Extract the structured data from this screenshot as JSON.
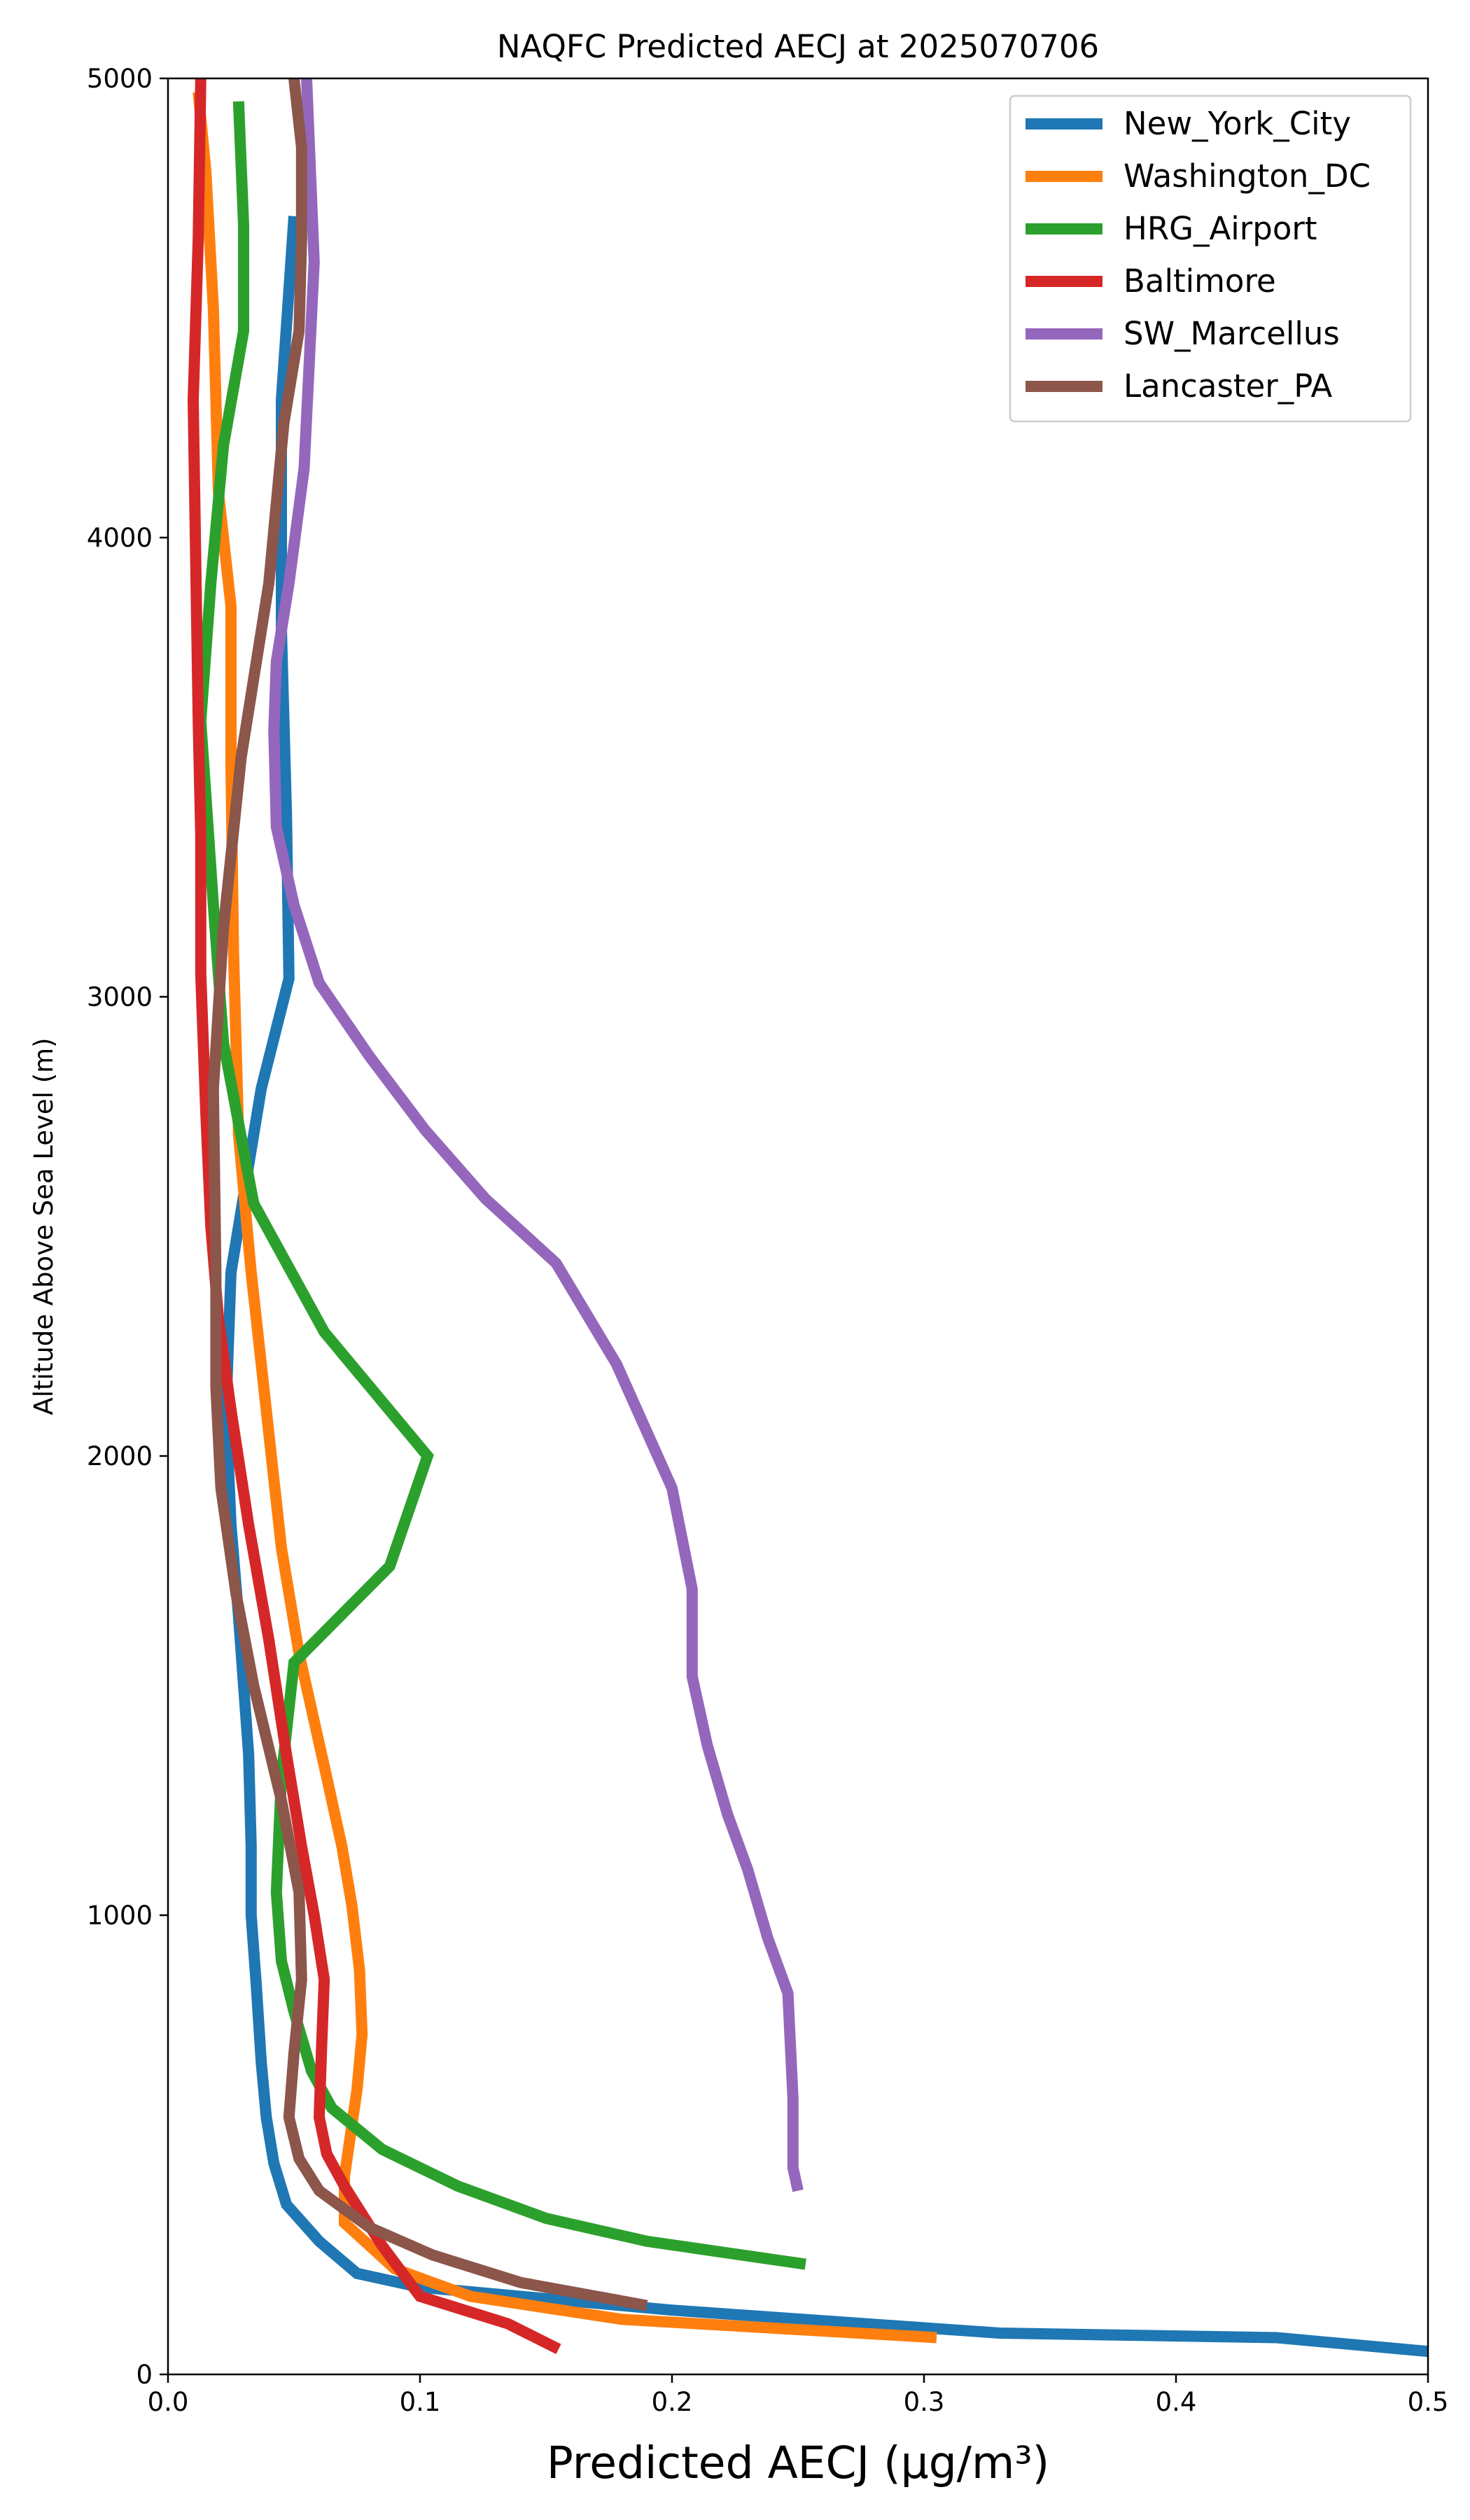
{
  "chart_data": {
    "type": "line",
    "title": "NAQFC Predicted AECJ at 2025070706",
    "xlabel": "Predicted AECJ (μg/m³)",
    "ylabel": "Altitude Above Sea Level (m)",
    "xlim": [
      0,
      0.5
    ],
    "ylim": [
      0,
      5000
    ],
    "xticks": [
      "0.0",
      "0.1",
      "0.2",
      "0.3",
      "0.4",
      "0.5"
    ],
    "yticks": [
      "0",
      "1000",
      "2000",
      "3000",
      "4000",
      "5000"
    ],
    "grid": false,
    "legend_position": "top-right",
    "series": [
      {
        "name": "New_York_City",
        "color": "#1f77b4",
        "points": [
          [
            0.5,
            50
          ],
          [
            0.44,
            80
          ],
          [
            0.33,
            90
          ],
          [
            0.2,
            140
          ],
          [
            0.1,
            190
          ],
          [
            0.075,
            220
          ],
          [
            0.06,
            290
          ],
          [
            0.047,
            370
          ],
          [
            0.042,
            460
          ],
          [
            0.039,
            560
          ],
          [
            0.037,
            680
          ],
          [
            0.035,
            850
          ],
          [
            0.033,
            1000
          ],
          [
            0.033,
            1150
          ],
          [
            0.032,
            1350
          ],
          [
            0.028,
            1650
          ],
          [
            0.025,
            1850
          ],
          [
            0.023,
            2100
          ],
          [
            0.025,
            2400
          ],
          [
            0.037,
            2800
          ],
          [
            0.048,
            3040
          ],
          [
            0.047,
            3400
          ],
          [
            0.045,
            3800
          ],
          [
            0.045,
            4300
          ],
          [
            0.05,
            4700
          ]
        ]
      },
      {
        "name": "Washington_DC",
        "color": "#ff7f0e",
        "points": [
          [
            0.305,
            80
          ],
          [
            0.18,
            120
          ],
          [
            0.12,
            170
          ],
          [
            0.09,
            230
          ],
          [
            0.07,
            330
          ],
          [
            0.07,
            430
          ],
          [
            0.075,
            620
          ],
          [
            0.077,
            740
          ],
          [
            0.076,
            880
          ],
          [
            0.073,
            1020
          ],
          [
            0.069,
            1150
          ],
          [
            0.063,
            1300
          ],
          [
            0.052,
            1570
          ],
          [
            0.045,
            1800
          ],
          [
            0.038,
            2150
          ],
          [
            0.033,
            2400
          ],
          [
            0.028,
            2700
          ],
          [
            0.026,
            3100
          ],
          [
            0.025,
            3500
          ],
          [
            0.025,
            3850
          ],
          [
            0.02,
            4100
          ],
          [
            0.018,
            4500
          ],
          [
            0.015,
            4800
          ],
          [
            0.012,
            4970
          ]
        ]
      },
      {
        "name": "HRG_Airport",
        "color": "#2ca02c",
        "points": [
          [
            0.253,
            240
          ],
          [
            0.19,
            290
          ],
          [
            0.15,
            340
          ],
          [
            0.115,
            410
          ],
          [
            0.085,
            490
          ],
          [
            0.065,
            580
          ],
          [
            0.057,
            660
          ],
          [
            0.05,
            790
          ],
          [
            0.045,
            900
          ],
          [
            0.043,
            1050
          ],
          [
            0.045,
            1300
          ],
          [
            0.05,
            1550
          ],
          [
            0.088,
            1760
          ],
          [
            0.103,
            2000
          ],
          [
            0.062,
            2270
          ],
          [
            0.034,
            2550
          ],
          [
            0.022,
            2900
          ],
          [
            0.018,
            3200
          ],
          [
            0.013,
            3600
          ],
          [
            0.017,
            3900
          ],
          [
            0.022,
            4200
          ],
          [
            0.03,
            4450
          ],
          [
            0.03,
            4680
          ],
          [
            0.028,
            4950
          ]
        ]
      },
      {
        "name": "Baltimore",
        "color": "#d62728",
        "points": [
          [
            0.155,
            55
          ],
          [
            0.135,
            110
          ],
          [
            0.1,
            170
          ],
          [
            0.085,
            280
          ],
          [
            0.07,
            410
          ],
          [
            0.063,
            480
          ],
          [
            0.06,
            560
          ],
          [
            0.061,
            720
          ],
          [
            0.062,
            860
          ],
          [
            0.058,
            1000
          ],
          [
            0.053,
            1150
          ],
          [
            0.047,
            1350
          ],
          [
            0.04,
            1600
          ],
          [
            0.032,
            1850
          ],
          [
            0.025,
            2100
          ],
          [
            0.02,
            2300
          ],
          [
            0.017,
            2500
          ],
          [
            0.015,
            2750
          ],
          [
            0.013,
            3050
          ],
          [
            0.013,
            3350
          ],
          [
            0.012,
            3600
          ],
          [
            0.01,
            4300
          ],
          [
            0.012,
            4650
          ],
          [
            0.013,
            5000
          ]
        ]
      },
      {
        "name": "SW_Marcellus",
        "color": "#9467bd",
        "points": [
          [
            0.25,
            400
          ],
          [
            0.248,
            450
          ],
          [
            0.248,
            600
          ],
          [
            0.246,
            830
          ],
          [
            0.238,
            950
          ],
          [
            0.23,
            1100
          ],
          [
            0.222,
            1220
          ],
          [
            0.214,
            1370
          ],
          [
            0.208,
            1520
          ],
          [
            0.208,
            1710
          ],
          [
            0.2,
            1930
          ],
          [
            0.178,
            2200
          ],
          [
            0.154,
            2420
          ],
          [
            0.126,
            2560
          ],
          [
            0.102,
            2710
          ],
          [
            0.08,
            2870
          ],
          [
            0.06,
            3030
          ],
          [
            0.05,
            3200
          ],
          [
            0.043,
            3370
          ],
          [
            0.042,
            3580
          ],
          [
            0.043,
            3730
          ],
          [
            0.048,
            3900
          ],
          [
            0.054,
            4150
          ],
          [
            0.058,
            4600
          ],
          [
            0.055,
            5000
          ]
        ]
      },
      {
        "name": "Lancaster_PA",
        "color": "#8c564b",
        "points": [
          [
            0.19,
            150
          ],
          [
            0.14,
            200
          ],
          [
            0.105,
            260
          ],
          [
            0.08,
            320
          ],
          [
            0.06,
            400
          ],
          [
            0.052,
            470
          ],
          [
            0.048,
            560
          ],
          [
            0.05,
            700
          ],
          [
            0.053,
            860
          ],
          [
            0.052,
            1050
          ],
          [
            0.045,
            1250
          ],
          [
            0.034,
            1500
          ],
          [
            0.027,
            1700
          ],
          [
            0.021,
            1930
          ],
          [
            0.019,
            2150
          ],
          [
            0.019,
            2400
          ],
          [
            0.018,
            2800
          ],
          [
            0.022,
            3150
          ],
          [
            0.029,
            3520
          ],
          [
            0.04,
            3900
          ],
          [
            0.046,
            4250
          ],
          [
            0.052,
            4450
          ],
          [
            0.053,
            4650
          ],
          [
            0.053,
            4850
          ],
          [
            0.05,
            5000
          ]
        ]
      }
    ]
  }
}
